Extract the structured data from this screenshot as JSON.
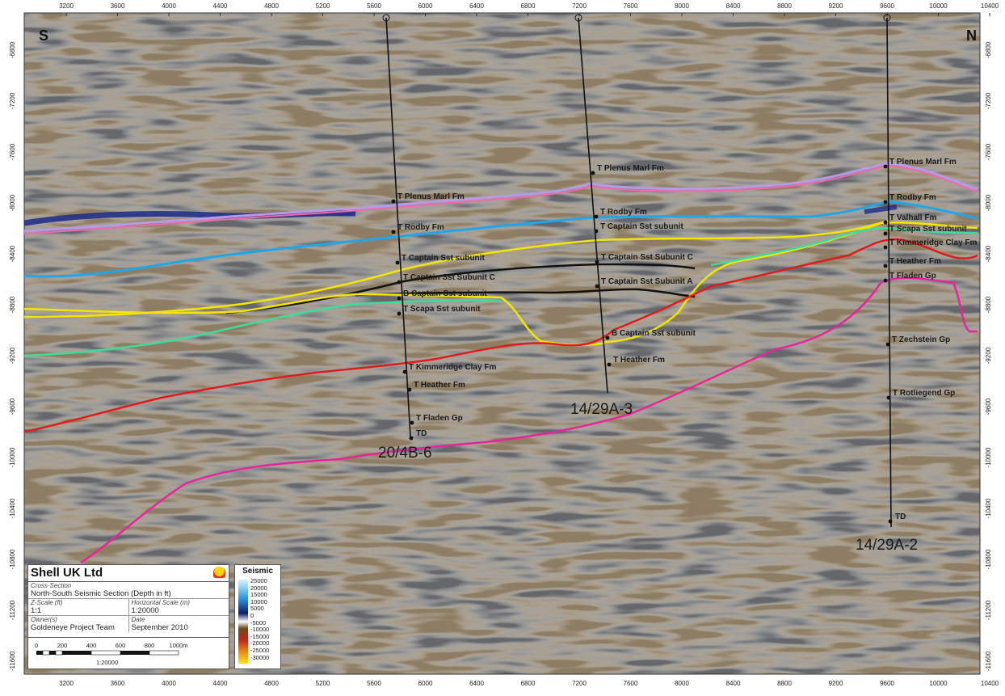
{
  "orientation": {
    "left": "S",
    "right": "N"
  },
  "x_axis": {
    "ticks": [
      "3200",
      "3600",
      "4000",
      "4400",
      "4800",
      "5200",
      "5600",
      "6000",
      "6400",
      "6800",
      "7200",
      "7600",
      "8000",
      "8400",
      "8800",
      "9200",
      "9600",
      "10000",
      "10400"
    ]
  },
  "y_axis": {
    "ticks": [
      "-6800",
      "-7200",
      "-7600",
      "-8000",
      "-8400",
      "-8800",
      "-9200",
      "-9600",
      "-10000",
      "-10400",
      "-10800",
      "-11200",
      "-11600"
    ]
  },
  "horizon_colors": {
    "plenus": "#b49be8",
    "plenus_edge": "#ef6aa8",
    "rodby": "#1fa6ea",
    "captain_top": "#f4e500",
    "captain_c": "#111111",
    "captain_a": "#111111",
    "scapa": "#3ddc9a",
    "kimmeridge": "#e01b1b",
    "zechstein": "#e6259b"
  },
  "wells": [
    {
      "id": "w1",
      "name": "20/4B-6",
      "td_label": "TD",
      "tops": [
        "T Plenus Marl Fm",
        "T Rodby Fm",
        "T Captain Sst subunit",
        "T Captain Sst Subunit C",
        "B Captain Sst subunit",
        "T Scapa Sst subunit",
        "T Kimmeridge Clay Fm",
        "T Heather Fm",
        "T Fladen Gp"
      ]
    },
    {
      "id": "w2",
      "name": "14/29A-3",
      "tops": [
        "T Plenus Marl Fm",
        "T Rodby Fm",
        "T Captain Sst subunit",
        "T Captain Sst Subunit C",
        "T Captain Sst Subunit A",
        "B Captain Sst subunit",
        "T Heather Fm"
      ]
    },
    {
      "id": "w3",
      "name": "14/29A-2",
      "td_label": "TD",
      "tops": [
        "T Plenus Marl Fm",
        "T Rodby Fm",
        "T Valhall Fm",
        "T Scapa Sst subunit",
        "T Kimmeridge Clay Fm",
        "T Heather Fm",
        "T Fladen Gp",
        "T Zechstein Gp",
        "T Rotliegend Gp"
      ]
    }
  ],
  "title_block": {
    "company": "Shell UK Ltd",
    "cross_section_caption": "Cross-Section",
    "cross_section": "North-South Seismic Section (Depth in ft)",
    "z_scale_caption": "Z-Scale (ft)",
    "z_scale": "1:1",
    "h_scale_caption": "Horizontal Scale (m)",
    "h_scale": "1:20000",
    "owner_caption": "Owner(s)",
    "owner": "Goldeneye Project Team",
    "date_caption": "Date",
    "date": "September 2010"
  },
  "scale_bar": {
    "labels": [
      "0",
      "200",
      "400",
      "600",
      "800",
      "1000m"
    ],
    "ratio": "1:20000"
  },
  "legend": {
    "title": "Seismic",
    "ticks": [
      "25000",
      "20000",
      "15000",
      "10000",
      "5000",
      "0",
      "-5000",
      "-10000",
      "-15000",
      "-20000",
      "-25000",
      "-30000"
    ]
  }
}
